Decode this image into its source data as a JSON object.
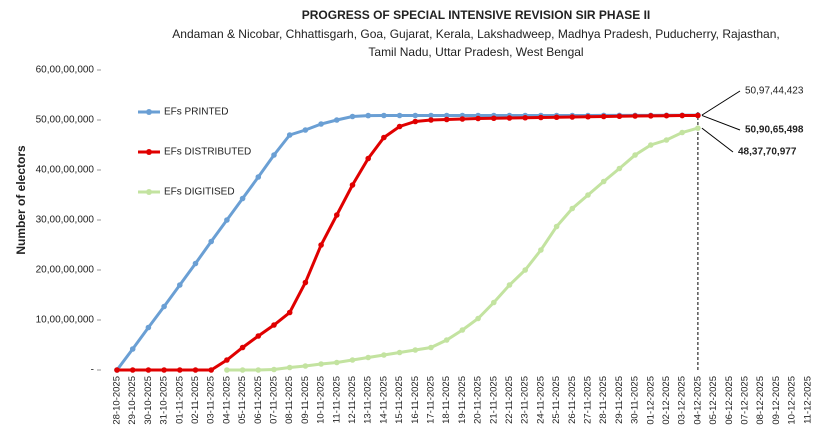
{
  "chart_data": {
    "type": "line",
    "title": "PROGRESS OF SPECIAL INTENSIVE REVISION SIR PHASE II",
    "subtitle": [
      "Andaman & Nicobar, Chhattisgarh, Goa, Gujarat, Kerala, Lakshadweep, Madhya Pradesh, Puducherry, Rajasthan,",
      "Tamil Nadu, Uttar Pradesh, West Bengal"
    ],
    "ylabel": "Number of electors",
    "categories": [
      "28-10-2025",
      "29-10-2025",
      "30-10-2025",
      "31-10-2025",
      "01-11-2025",
      "02-11-2025",
      "03-11-2025",
      "04-11-2025",
      "05-11-2025",
      "06-11-2025",
      "07-11-2025",
      "08-11-2025",
      "09-11-2025",
      "10-11-2025",
      "11-11-2025",
      "12-11-2025",
      "13-11-2025",
      "14-11-2025",
      "15-11-2025",
      "16-11-2025",
      "17-11-2025",
      "18-11-2025",
      "19-11-2025",
      "20-11-2025",
      "21-11-2025",
      "22-11-2025",
      "23-11-2025",
      "24-11-2025",
      "25-11-2025",
      "26-11-2025",
      "27-11-2025",
      "28-11-2025",
      "29-11-2025",
      "30-11-2025",
      "01-12-2025",
      "02-12-2025",
      "03-12-2025",
      "04-12-2025",
      "05-12-2025",
      "06-12-2025",
      "07-12-2025",
      "08-12-2025",
      "09-12-2025",
      "10-12-2025",
      "11-12-2025"
    ],
    "series": [
      {
        "name": "EFs PRINTED",
        "color": "#6a9fd4",
        "values": [
          0,
          42000000,
          85000000,
          127000000,
          170000000,
          213000000,
          257000000,
          300000000,
          343000000,
          386000000,
          430000000,
          470000000,
          480000000,
          492000000,
          500000000,
          507000000,
          508800000,
          509000000,
          509000000,
          509000000,
          509000000,
          509000000,
          509000000,
          509000000,
          509000000,
          509000000,
          509000000,
          509000000,
          509000000,
          509000000,
          509000000,
          509200000,
          509200000,
          509200000,
          509200000,
          509400000,
          509400000,
          509744423,
          null,
          null,
          null,
          null,
          null,
          null,
          null
        ]
      },
      {
        "name": "EFs DISTRIBUTED",
        "color": "#e00000",
        "values": [
          0,
          0,
          0,
          0,
          0,
          0,
          0,
          20000000,
          45000000,
          68000000,
          90000000,
          115000000,
          175000000,
          250000000,
          310000000,
          370000000,
          423000000,
          465000000,
          487000000,
          497000000,
          500000000,
          501000000,
          502000000,
          503000000,
          503500000,
          504000000,
          504500000,
          505000000,
          505500000,
          506000000,
          506500000,
          507000000,
          507500000,
          508000000,
          508300000,
          508600000,
          508900000,
          509065498,
          null,
          null,
          null,
          null,
          null,
          null,
          null
        ]
      },
      {
        "name": "EFs DIGITISED",
        "color": "#c3e3a0",
        "values": [
          null,
          null,
          null,
          null,
          null,
          null,
          null,
          0,
          0,
          0,
          1000000,
          5000000,
          8000000,
          12000000,
          15000000,
          20000000,
          25000000,
          30000000,
          35000000,
          40000000,
          45000000,
          60000000,
          80000000,
          103000000,
          135000000,
          170000000,
          200000000,
          240000000,
          287000000,
          323000000,
          350000000,
          377000000,
          403000000,
          430000000,
          450000000,
          460000000,
          475000000,
          483770977,
          null,
          null,
          null,
          null,
          null,
          null,
          null
        ]
      }
    ],
    "annotations": [
      {
        "label": "50,97,44,423",
        "value": 509744423
      },
      {
        "label": "50,90,65,498",
        "value": 509065498
      },
      {
        "label": "48,37,70,977",
        "value": 483770977
      }
    ],
    "ylim": [
      0,
      600000000
    ],
    "yticks": [
      {
        "value": 0,
        "label": "-"
      },
      {
        "value": 100000000,
        "label": "10,00,00,000"
      },
      {
        "value": 200000000,
        "label": "20,00,00,000"
      },
      {
        "value": 300000000,
        "label": "30,00,00,000"
      },
      {
        "value": 400000000,
        "label": "40,00,00,000"
      },
      {
        "value": 500000000,
        "label": "50,00,00,000"
      },
      {
        "value": 600000000,
        "label": "60,00,00,000"
      }
    ],
    "grid": false,
    "legend": "upper left"
  }
}
